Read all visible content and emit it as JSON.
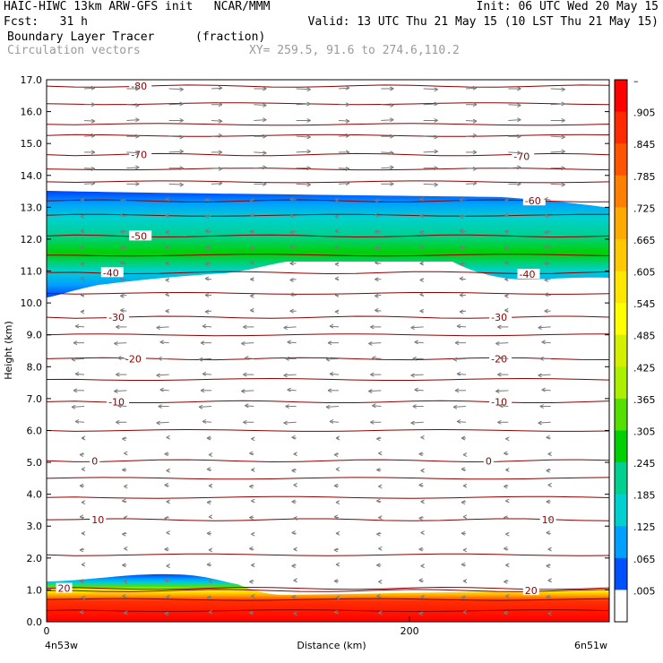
{
  "header": {
    "line1_left": "HAIC-HIWC 13km ARW-GFS init   NCAR/MMM",
    "line1_right": "Init: 06 UTC Wed 20 May 15",
    "line2_left": "Fcst:   31 h",
    "line2_right": "Valid: 13 UTC Thu 21 May 15 (10 LST Thu 21 May 15)",
    "line3_left": "Boundary Layer Tracer",
    "line3_unit": "(fraction)",
    "line4_left": "Circulation vectors",
    "line4_xy": "XY= 259.5, 91.6 to 274.6,110.2"
  },
  "chart_data": {
    "type": "heatmap",
    "xlabel": "Distance (km)",
    "ylabel": "Height (km)",
    "xlim": [
      0,
      310
    ],
    "ylim": [
      0.0,
      17.0
    ],
    "x_ticks": [
      {
        "value": 0,
        "label": "0"
      },
      {
        "value": 200,
        "label": "200"
      }
    ],
    "x_end_labels": {
      "left": "4n53w",
      "right": "6n51w"
    },
    "y_ticks": [
      "0.0",
      "1.0",
      "2.0",
      "3.0",
      "4.0",
      "5.0",
      "6.0",
      "7.0",
      "8.0",
      "9.0",
      "10.0",
      "11.0",
      "12.0",
      "13.0",
      "14.0",
      "15.0",
      "16.0",
      "17.0"
    ],
    "colorbar": {
      "labels": [
        "–",
        ".905",
        ".845",
        ".785",
        ".725",
        ".665",
        ".605",
        ".545",
        ".485",
        ".425",
        ".365",
        ".305",
        ".245",
        ".185",
        ".125",
        ".065",
        ".005"
      ],
      "colors": [
        "#ff0000",
        "#ff2a00",
        "#ff5500",
        "#ff7f00",
        "#ffaa00",
        "#ffc800",
        "#ffe600",
        "#ffff00",
        "#d4f000",
        "#aaf000",
        "#55e000",
        "#00d000",
        "#00d090",
        "#00d0d0",
        "#00a0ff",
        "#0050ff",
        "#ffffff"
      ]
    },
    "isotherms": [
      {
        "label": "-80",
        "height": 16.8,
        "label_x": 0.15
      },
      {
        "label": "-70",
        "height": 14.65,
        "label_x": 0.15
      },
      {
        "label": "-70",
        "height": 14.6,
        "label_x": 0.83
      },
      {
        "label": "-60",
        "height": 13.2,
        "label_x": 0.85
      },
      {
        "label": "-50",
        "height": 12.1,
        "label_x": 0.15
      },
      {
        "label": "-40",
        "height": 10.95,
        "label_x": 0.1
      },
      {
        "label": "-40",
        "height": 10.9,
        "label_x": 0.84
      },
      {
        "label": "-30",
        "height": 9.55,
        "label_x": 0.11
      },
      {
        "label": "-30",
        "height": 9.55,
        "label_x": 0.79
      },
      {
        "label": "-20",
        "height": 8.25,
        "label_x": 0.14
      },
      {
        "label": "-20",
        "height": 8.25,
        "label_x": 0.79
      },
      {
        "label": "-10",
        "height": 6.9,
        "label_x": 0.11
      },
      {
        "label": "-10",
        "height": 6.9,
        "label_x": 0.79
      },
      {
        "label": "0",
        "height": 5.05,
        "label_x": 0.08
      },
      {
        "label": "0",
        "height": 5.05,
        "label_x": 0.78
      },
      {
        "label": "10",
        "height": 3.2,
        "label_x": 0.08
      },
      {
        "label": "10",
        "height": 3.2,
        "label_x": 0.88
      },
      {
        "label": "20",
        "height": 1.05,
        "label_x": 0.02
      },
      {
        "label": "20",
        "height": 0.98,
        "label_x": 0.85
      }
    ]
  }
}
